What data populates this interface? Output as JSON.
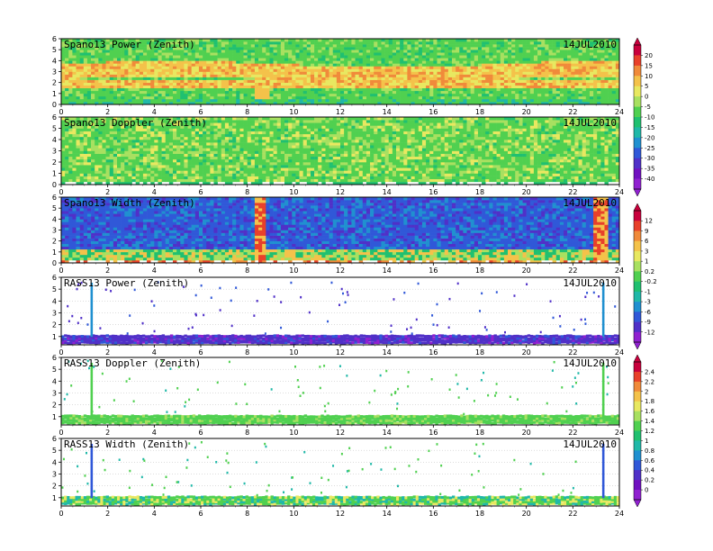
{
  "chart_data": [
    {
      "type": "heatmap",
      "title": "Spano13 Power (Zenith)",
      "date": "14JUL2010",
      "x_ticks": [
        0,
        2,
        4,
        6,
        8,
        10,
        12,
        14,
        16,
        18,
        20,
        22,
        24
      ],
      "y_ticks": [
        0,
        1,
        2,
        3,
        4,
        5,
        6
      ],
      "xlim": [
        0,
        24
      ],
      "ylim": [
        0,
        6
      ],
      "pattern": "power",
      "colorbar_group": 0
    },
    {
      "type": "heatmap",
      "title": "Spano13 Doppler (Zenith)",
      "date": "14JUL2010",
      "x_ticks": [
        0,
        2,
        4,
        6,
        8,
        10,
        12,
        14,
        16,
        18,
        20,
        22,
        24
      ],
      "y_ticks": [
        0,
        1,
        2,
        3,
        4,
        5,
        6
      ],
      "xlim": [
        0,
        24
      ],
      "ylim": [
        0,
        6
      ],
      "pattern": "doppler",
      "colorbar_group": 0
    },
    {
      "type": "heatmap",
      "title": "Spano13 Width (Zenith)",
      "date": "14JUL2010",
      "x_ticks": [
        0,
        2,
        4,
        6,
        8,
        10,
        12,
        14,
        16,
        18,
        20,
        22,
        24
      ],
      "y_ticks": [
        0,
        1,
        2,
        3,
        4,
        5,
        6
      ],
      "xlim": [
        0,
        24
      ],
      "ylim": [
        0,
        6
      ],
      "pattern": "width",
      "colorbar_group": 1
    },
    {
      "type": "heatmap",
      "title": "RASS13 Power (Zenith)",
      "date": "14JUL2010",
      "x_ticks": [
        0,
        2,
        4,
        6,
        8,
        10,
        12,
        14,
        16,
        18,
        20,
        22,
        24
      ],
      "y_ticks": [
        1,
        2,
        3,
        4,
        5,
        6
      ],
      "xlim": [
        0,
        24
      ],
      "ylim": [
        0.3,
        6
      ],
      "pattern": "rass_power",
      "colorbar_group": 1
    },
    {
      "type": "heatmap",
      "title": "RASS13 Doppler (Zenith)",
      "date": "14JUL2010",
      "x_ticks": [
        0,
        2,
        4,
        6,
        8,
        10,
        12,
        14,
        16,
        18,
        20,
        22,
        24
      ],
      "y_ticks": [
        1,
        2,
        3,
        4,
        5,
        6
      ],
      "xlim": [
        0,
        24
      ],
      "ylim": [
        0.3,
        6
      ],
      "pattern": "rass_doppler",
      "colorbar_group": 2
    },
    {
      "type": "heatmap",
      "title": "RASS13 Width (Zenith)",
      "date": "14JUL2010",
      "x_ticks": [
        0,
        2,
        4,
        6,
        8,
        10,
        12,
        14,
        16,
        18,
        20,
        22,
        24
      ],
      "y_ticks": [
        1,
        2,
        3,
        4,
        5,
        6
      ],
      "xlim": [
        0,
        24
      ],
      "ylim": [
        0.3,
        6
      ],
      "pattern": "rass_width",
      "colorbar_group": 2
    }
  ],
  "colorbars": [
    {
      "labels": [
        "20",
        "15",
        "10",
        "5",
        "0",
        "-5",
        "-10",
        "-15",
        "-20",
        "-25",
        "-30",
        "-35",
        "-40"
      ],
      "colors": [
        "#c8003c",
        "#e8402a",
        "#f08a3a",
        "#f4c24a",
        "#e8e860",
        "#a8e060",
        "#50d050",
        "#20c070",
        "#20b8a8",
        "#2090d0",
        "#3058d8",
        "#5030c8",
        "#7010c0",
        "#9020d0"
      ]
    },
    {
      "labels": [
        "12",
        "9",
        "6",
        "3",
        "1",
        "0.2",
        "-0.2",
        "-1",
        "-3",
        "-6",
        "-9",
        "-12"
      ],
      "colors": [
        "#c8003c",
        "#e8402a",
        "#f08a3a",
        "#f4c24a",
        "#e8e860",
        "#a8e060",
        "#50d050",
        "#20c070",
        "#20b8a8",
        "#2090d0",
        "#3058d8",
        "#5030c8",
        "#9020d0"
      ]
    },
    {
      "labels": [
        "2.4",
        "2.2",
        "2",
        "1.8",
        "1.6",
        "1.4",
        "1.2",
        "1",
        "0.8",
        "0.6",
        "0.4",
        "0.2",
        "0"
      ],
      "colors": [
        "#c8003c",
        "#e8402a",
        "#f08a3a",
        "#f4c24a",
        "#e8e860",
        "#a8e060",
        "#50d050",
        "#20c070",
        "#20b8a8",
        "#2090d0",
        "#3058d8",
        "#5030c8",
        "#7010c0",
        "#9020d0"
      ]
    }
  ]
}
